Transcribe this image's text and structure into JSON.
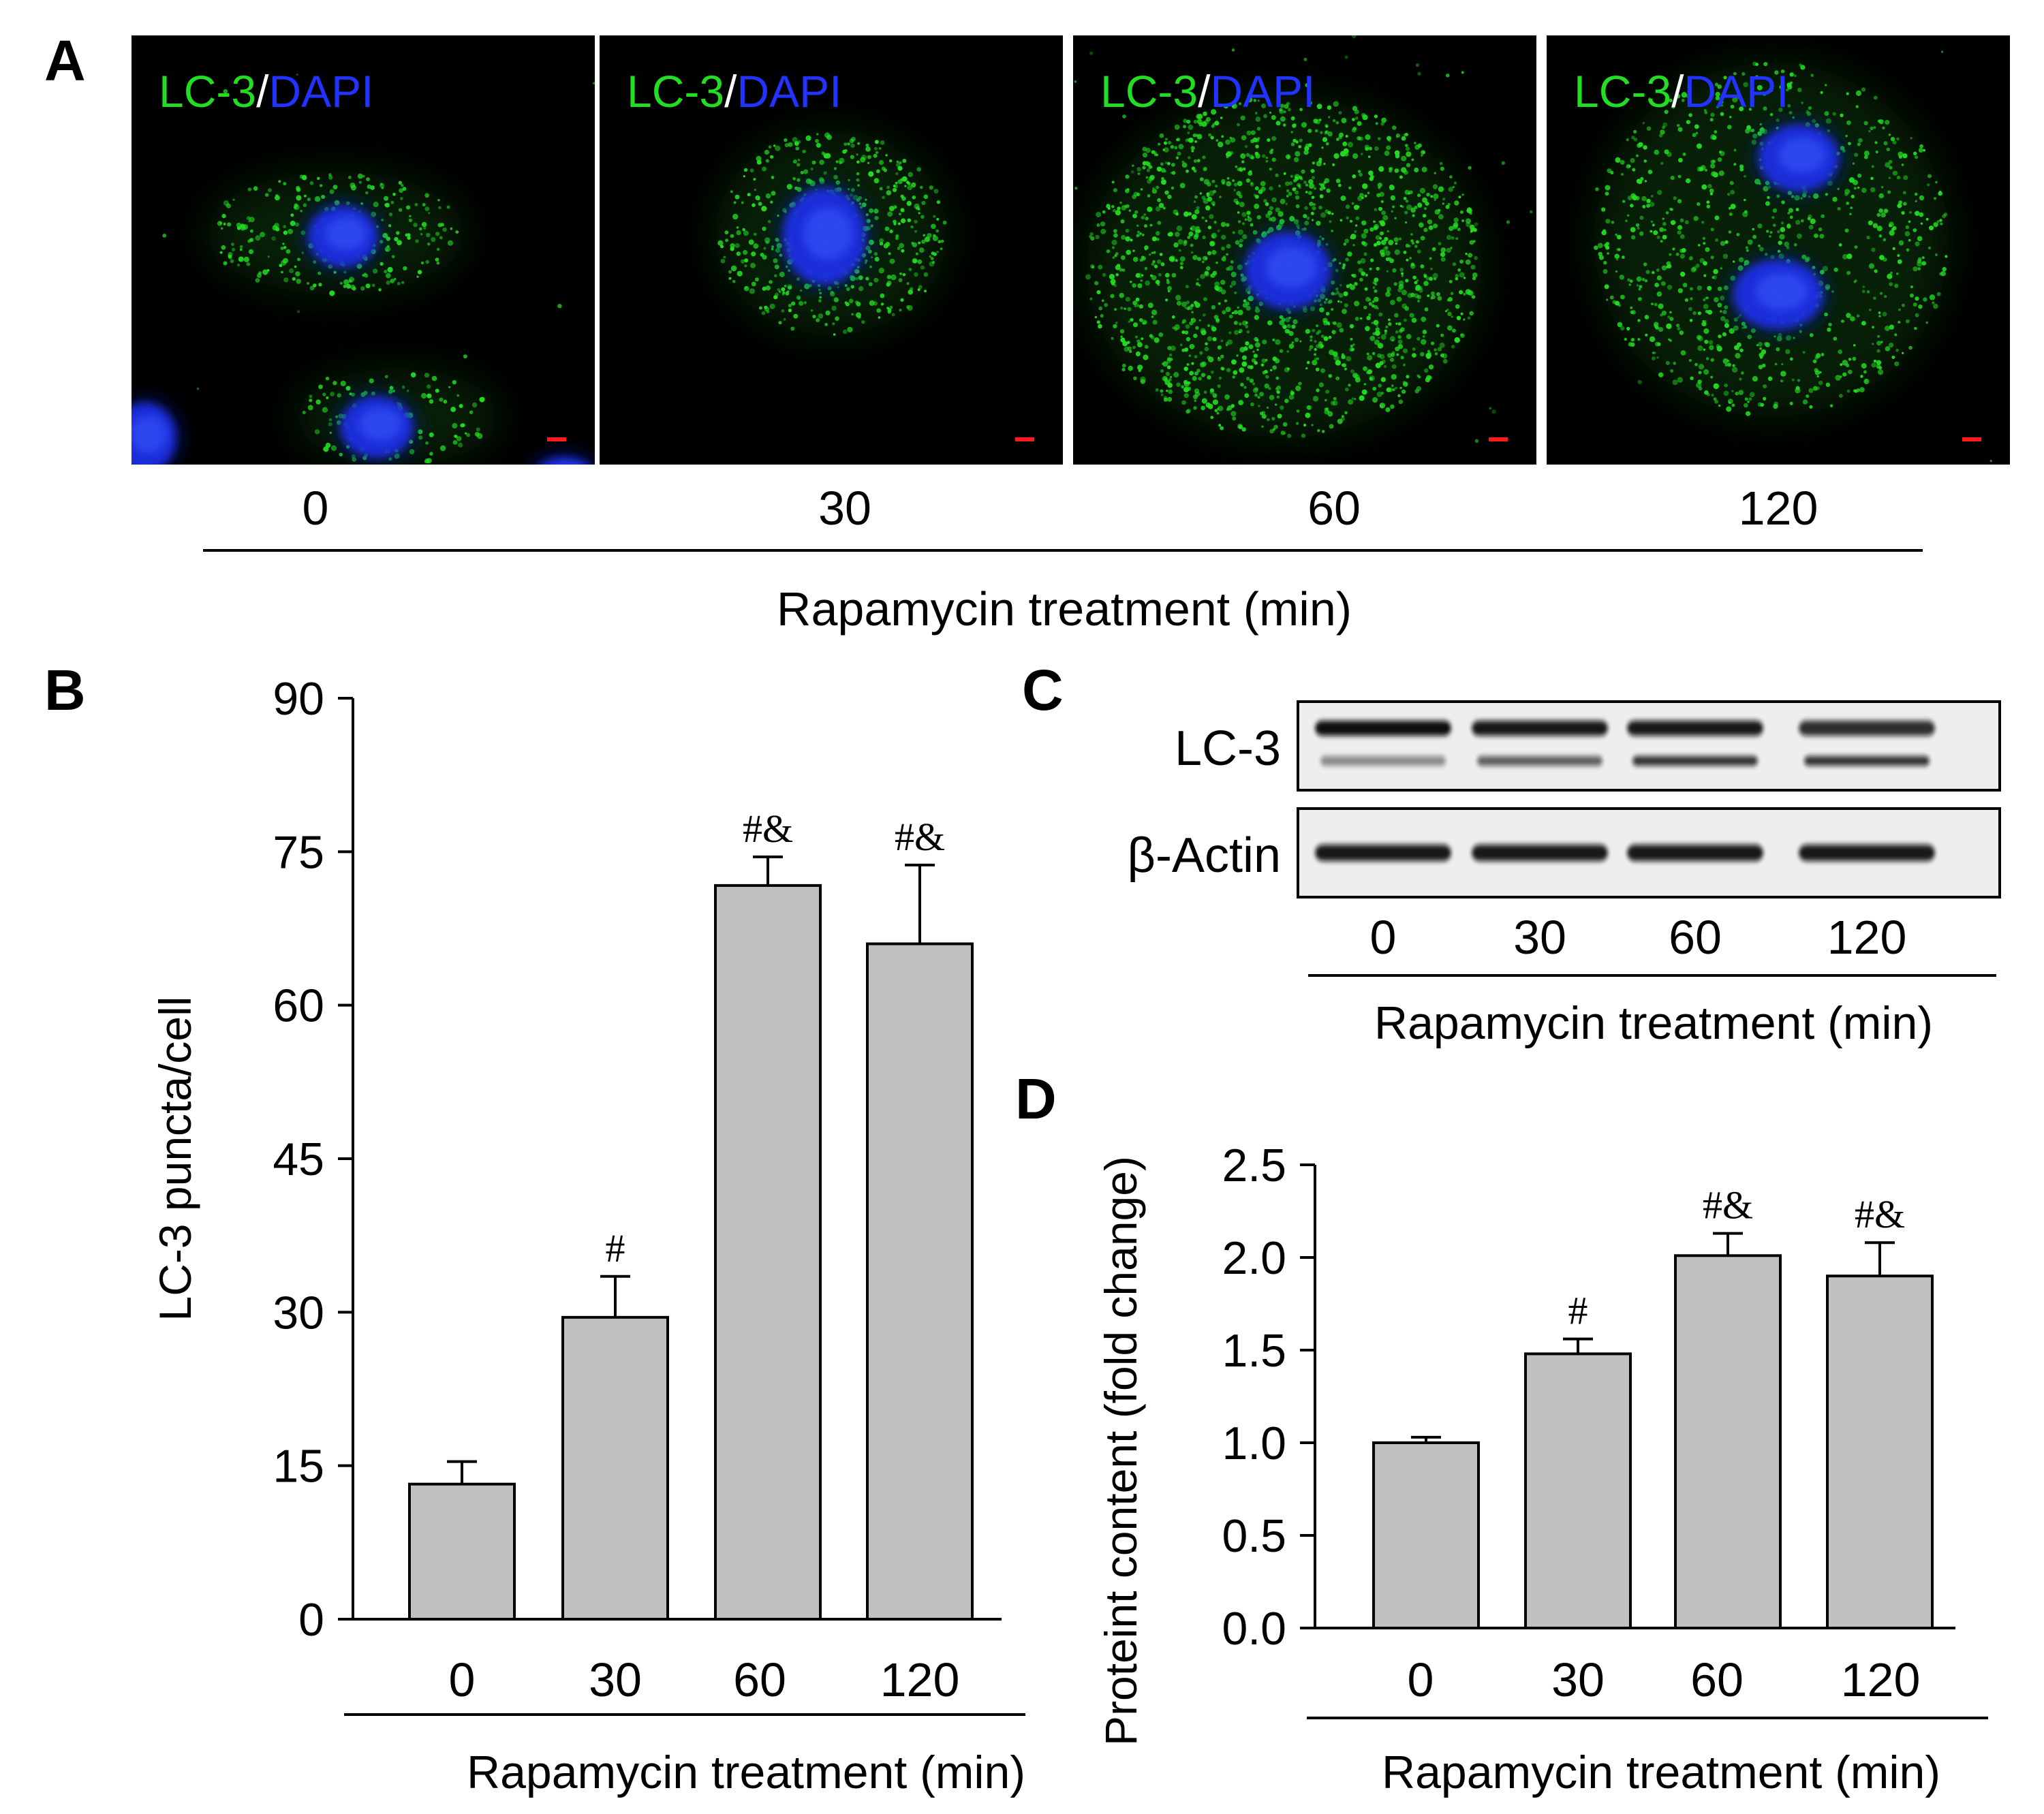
{
  "panels": {
    "A": {
      "letter": "A",
      "images": [
        {
          "time": "0",
          "label_green": "LC-3",
          "label_sep": "/",
          "label_blue": "DAPI"
        },
        {
          "time": "30",
          "label_green": "LC-3",
          "label_sep": "/",
          "label_blue": "DAPI"
        },
        {
          "time": "60",
          "label_green": "LC-3",
          "label_sep": "/",
          "label_blue": "DAPI"
        },
        {
          "time": "120",
          "label_green": "LC-3",
          "label_sep": "/",
          "label_blue": "DAPI"
        }
      ],
      "xlabel": "Rapamycin treatment (min)"
    },
    "B": {
      "letter": "B"
    },
    "C": {
      "letter": "C",
      "rows": [
        "LC-3",
        "β-Actin"
      ],
      "lanes": [
        "0",
        "30",
        "60",
        "120"
      ],
      "xlabel": "Rapamycin treatment (min)"
    },
    "D": {
      "letter": "D"
    }
  },
  "colors": {
    "bar_fill": "#c0c0c0",
    "bar_stroke": "#000000",
    "lc3_green": "#22dd22",
    "dapi_blue": "#2233ff",
    "scale_bar": "#ff1a1a",
    "blot_background": "#eeeeee",
    "band": "#111111"
  },
  "chart_data": [
    {
      "type": "bar",
      "panel": "B",
      "categories": [
        "0",
        "30",
        "60",
        "120"
      ],
      "values": [
        13.2,
        29.5,
        71.7,
        66.0
      ],
      "errors": [
        2.2,
        4.0,
        2.8,
        7.7
      ],
      "annotations": [
        "",
        "#",
        "#&",
        "#&"
      ],
      "xlabel": "Rapamycin treatment (min)",
      "ylabel": "LC-3 puncta/cell",
      "ylim": [
        0,
        90
      ],
      "yticks": [
        "0",
        "15",
        "30",
        "45",
        "60",
        "75",
        "90"
      ],
      "grid": false
    },
    {
      "type": "bar",
      "panel": "D",
      "categories": [
        "0",
        "30",
        "60",
        "120"
      ],
      "values": [
        1.0,
        1.48,
        2.01,
        1.9
      ],
      "errors": [
        0.03,
        0.08,
        0.12,
        0.18
      ],
      "annotations": [
        "",
        "#",
        "#&",
        "#&"
      ],
      "xlabel": "Rapamycin treatment (min)",
      "ylabel": "Proteint content (fold change)",
      "ylim": [
        0,
        2.5
      ],
      "yticks": [
        "0.0",
        "0.5",
        "1.0",
        "1.5",
        "2.0",
        "2.5"
      ],
      "grid": false
    }
  ]
}
